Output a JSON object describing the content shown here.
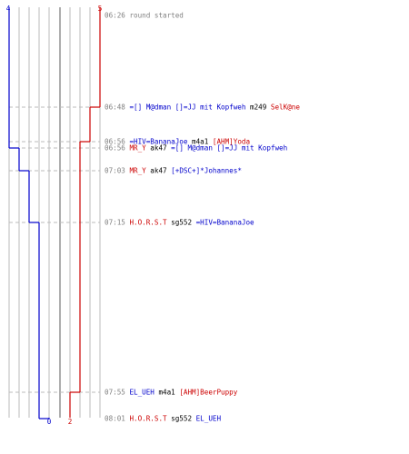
{
  "round": {
    "start_count": {
      "blue": "4",
      "red": "5"
    },
    "end_count": {
      "blue": "0",
      "red": "2"
    }
  },
  "colors": {
    "blue_team": "#0000cc",
    "red_team": "#cc0000",
    "neutral_text": "#000000",
    "time_text": "#808080",
    "grid": "#bbbbbb",
    "center_line": "#777777",
    "dashed": "#bbbbbb"
  },
  "events": [
    {
      "time": "06:26",
      "parts": [
        {
          "text": "round started",
          "team": "time"
        }
      ]
    },
    {
      "time": "06:48",
      "parts": [
        {
          "text": "=[] M@dman []=JJ mit Kopfweh",
          "team": "blue"
        },
        {
          "text": " m249 ",
          "team": "neutral"
        },
        {
          "text": "SelK@ne",
          "team": "red"
        }
      ],
      "red_after": 4
    },
    {
      "time": "06:56",
      "parts": [
        {
          "text": "=HIV=BananaJoe",
          "team": "blue"
        },
        {
          "text": " m4a1 ",
          "team": "neutral"
        },
        {
          "text": "[AHM]Yoda",
          "team": "red"
        }
      ],
      "red_after": 3
    },
    {
      "time": "06:56",
      "parts": [
        {
          "text": "MR_Y",
          "team": "red"
        },
        {
          "text": " ak47 ",
          "team": "neutral"
        },
        {
          "text": "=[] M@dman []=JJ mit Kopfweh",
          "team": "blue"
        }
      ],
      "blue_after": 3
    },
    {
      "time": "07:03",
      "parts": [
        {
          "text": "MR_Y",
          "team": "red"
        },
        {
          "text": " ak47 ",
          "team": "neutral"
        },
        {
          "text": "[+DSC+]*Johannes*",
          "team": "blue"
        }
      ],
      "blue_after": 2
    },
    {
      "time": "07:15",
      "parts": [
        {
          "text": "H.O.R.S.T",
          "team": "red"
        },
        {
          "text": " sg552 ",
          "team": "neutral"
        },
        {
          "text": "=HIV=BananaJoe",
          "team": "blue"
        }
      ],
      "blue_after": 1
    },
    {
      "time": "07:55",
      "parts": [
        {
          "text": "EL_UEH",
          "team": "blue"
        },
        {
          "text": " m4a1 ",
          "team": "neutral"
        },
        {
          "text": "[AHM]BeerPuppy",
          "team": "red"
        }
      ],
      "red_after": 2
    },
    {
      "time": "08:01",
      "parts": [
        {
          "text": "H.O.R.S.T",
          "team": "red"
        },
        {
          "text": " sg552 ",
          "team": "neutral"
        },
        {
          "text": "EL_UEH",
          "team": "blue"
        }
      ],
      "blue_after": 0
    }
  ]
}
